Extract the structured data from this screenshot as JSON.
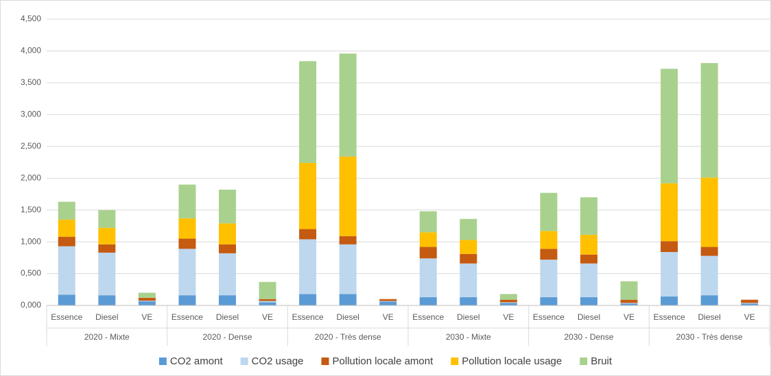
{
  "chart_data": {
    "type": "stacked_bar",
    "categories": [
      "Essence",
      "Diesel",
      "VE",
      "Essence",
      "Diesel",
      "VE",
      "Essence",
      "Diesel",
      "VE",
      "Essence",
      "Diesel",
      "VE",
      "Essence",
      "Diesel",
      "VE",
      "Essence",
      "Diesel",
      "VE"
    ],
    "groups": [
      "2020 - Mixte",
      "2020 - Dense",
      "2020 - Très dense",
      "2030 - Mixte",
      "2030 - Dense",
      "2030 - Très dense"
    ],
    "series": [
      {
        "name": "CO2 amont",
        "color": "#5b9bd5",
        "values": [
          170,
          160,
          65,
          160,
          160,
          50,
          180,
          180,
          60,
          130,
          130,
          40,
          130,
          130,
          30,
          140,
          160,
          30
        ]
      },
      {
        "name": "CO2 usage",
        "color": "#bdd7ee",
        "values": [
          760,
          670,
          10,
          730,
          660,
          20,
          860,
          780,
          10,
          610,
          530,
          10,
          590,
          530,
          10,
          700,
          620,
          10
        ]
      },
      {
        "name": "Pollution locale amont",
        "color": "#c55a11",
        "values": [
          150,
          130,
          45,
          160,
          140,
          30,
          160,
          130,
          30,
          180,
          150,
          40,
          170,
          140,
          50,
          170,
          140,
          50
        ]
      },
      {
        "name": "Pollution locale usage",
        "color": "#ffc000",
        "values": [
          270,
          260,
          0,
          320,
          330,
          0,
          1040,
          1250,
          0,
          230,
          220,
          0,
          280,
          310,
          0,
          910,
          1090,
          0
        ]
      },
      {
        "name": "Bruit",
        "color": "#a9d18e",
        "values": [
          280,
          280,
          80,
          530,
          530,
          270,
          1600,
          1620,
          0,
          330,
          330,
          90,
          600,
          590,
          290,
          1800,
          1800,
          0
        ]
      }
    ],
    "ylim": [
      0,
      4500
    ],
    "yticks": [
      {
        "value": 0,
        "label": "0,000"
      },
      {
        "value": 500,
        "label": "0,500"
      },
      {
        "value": 1000,
        "label": "1,000"
      },
      {
        "value": 1500,
        "label": "1,500"
      },
      {
        "value": 2000,
        "label": "2,000"
      },
      {
        "value": 2500,
        "label": "2,500"
      },
      {
        "value": 3000,
        "label": "3,000"
      },
      {
        "value": 3500,
        "label": "3,500"
      },
      {
        "value": 4000,
        "label": "4,000"
      },
      {
        "value": 4500,
        "label": "4,500"
      }
    ],
    "grid": true
  }
}
